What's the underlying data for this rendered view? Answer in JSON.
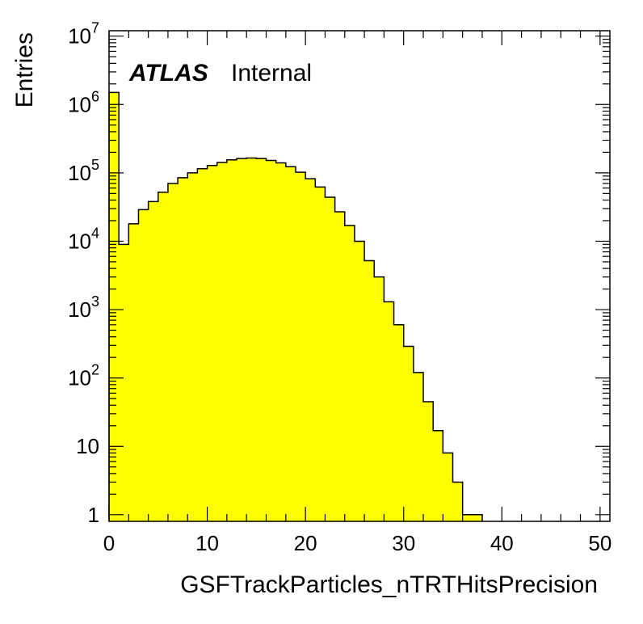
{
  "chart_data": {
    "type": "bar",
    "histogram": true,
    "xlabel": "GSFTrackParticles_nTRTHitsPrecision",
    "ylabel": "Entries",
    "xlim": [
      0,
      51
    ],
    "ylim": [
      0.8,
      12000000
    ],
    "yscale": "log",
    "fill_color": "#ffff00",
    "line_color": "#000000",
    "x_ticks": [
      0,
      10,
      20,
      30,
      40,
      50
    ],
    "x_tick_labels": [
      "0",
      "10",
      "20",
      "30",
      "40",
      "50"
    ],
    "y_ticks": [
      1,
      10,
      100,
      1000,
      10000,
      100000,
      1000000,
      10000000
    ],
    "y_tick_labels": [
      {
        "base": "1",
        "exp": ""
      },
      {
        "base": "10",
        "exp": ""
      },
      {
        "base": "10",
        "exp": "2"
      },
      {
        "base": "10",
        "exp": "3"
      },
      {
        "base": "10",
        "exp": "4"
      },
      {
        "base": "10",
        "exp": "5"
      },
      {
        "base": "10",
        "exp": "6"
      },
      {
        "base": "10",
        "exp": "7"
      }
    ],
    "bin_edges": [
      0,
      1,
      2,
      3,
      4,
      5,
      6,
      7,
      8,
      9,
      10,
      11,
      12,
      13,
      14,
      15,
      16,
      17,
      18,
      19,
      20,
      21,
      22,
      23,
      24,
      25,
      26,
      27,
      28,
      29,
      30,
      31,
      32,
      33,
      34,
      35,
      36,
      37,
      38
    ],
    "values": [
      1500000,
      9000,
      18000,
      29000,
      38000,
      52000,
      70000,
      85000,
      100000,
      115000,
      128000,
      142000,
      155000,
      162000,
      165000,
      162000,
      152000,
      140000,
      123000,
      102000,
      82000,
      62000,
      44000,
      27000,
      17000,
      10000,
      5200,
      3000,
      1300,
      600,
      290,
      120,
      45,
      17,
      8,
      3,
      1,
      1
    ],
    "annotations": {
      "experiment": "ATLAS",
      "status": "Internal"
    }
  }
}
